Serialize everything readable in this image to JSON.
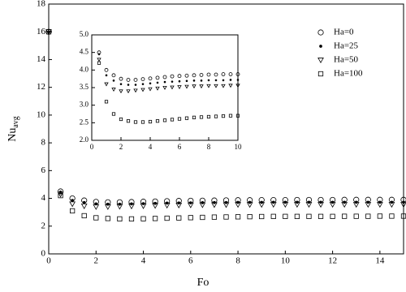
{
  "chart_data": {
    "type": "scatter",
    "xlabel": "Fo",
    "ylabel": "Nu",
    "ylabel_sub": "avg",
    "xlim": [
      0,
      15
    ],
    "ylim": [
      0,
      18
    ],
    "xticks": [
      0,
      2,
      4,
      6,
      8,
      10,
      12,
      14
    ],
    "yticks": [
      0,
      2,
      4,
      6,
      8,
      10,
      12,
      14,
      16,
      18
    ],
    "grid": false,
    "legend": "upper right",
    "x": [
      0,
      0.5,
      1,
      1.5,
      2,
      2.5,
      3,
      3.5,
      4,
      4.5,
      5,
      5.5,
      6,
      6.5,
      7,
      7.5,
      8,
      8.5,
      9,
      9.5,
      10,
      10.5,
      11,
      11.5,
      12,
      12.5,
      13,
      13.5,
      14,
      14.5,
      15
    ],
    "series": [
      {
        "name": "Ha=0",
        "color": "#000000",
        "marker": "circle",
        "values": [
          16,
          4.5,
          4.0,
          3.85,
          3.75,
          3.72,
          3.72,
          3.74,
          3.76,
          3.78,
          3.8,
          3.82,
          3.83,
          3.84,
          3.85,
          3.86,
          3.87,
          3.87,
          3.88,
          3.88,
          3.88,
          3.89,
          3.89,
          3.89,
          3.89,
          3.9,
          3.9,
          3.9,
          3.9,
          3.9,
          3.9
        ]
      },
      {
        "name": "Ha=25",
        "color": "#000000",
        "marker": "dot",
        "values": [
          16,
          4.45,
          3.85,
          3.7,
          3.6,
          3.58,
          3.58,
          3.6,
          3.62,
          3.64,
          3.66,
          3.67,
          3.68,
          3.69,
          3.7,
          3.7,
          3.71,
          3.71,
          3.71,
          3.72,
          3.72,
          3.72,
          3.72,
          3.72,
          3.72,
          3.72,
          3.72,
          3.72,
          3.72,
          3.72,
          3.72
        ]
      },
      {
        "name": "Ha=50",
        "color": "#000000",
        "marker": "triangle-down",
        "values": [
          16,
          4.3,
          3.6,
          3.45,
          3.4,
          3.4,
          3.42,
          3.44,
          3.46,
          3.48,
          3.5,
          3.51,
          3.52,
          3.53,
          3.54,
          3.54,
          3.55,
          3.55,
          3.55,
          3.56,
          3.56,
          3.56,
          3.56,
          3.56,
          3.56,
          3.56,
          3.56,
          3.56,
          3.56,
          3.56,
          3.56
        ]
      },
      {
        "name": "Ha=100",
        "color": "#000000",
        "marker": "square",
        "values": [
          16,
          4.2,
          3.1,
          2.75,
          2.6,
          2.55,
          2.52,
          2.52,
          2.53,
          2.55,
          2.57,
          2.59,
          2.61,
          2.63,
          2.65,
          2.66,
          2.67,
          2.68,
          2.69,
          2.7,
          2.7,
          2.7,
          2.7,
          2.7,
          2.7,
          2.71,
          2.71,
          2.71,
          2.72,
          2.72,
          2.72
        ]
      }
    ],
    "inset": {
      "xlim": [
        0,
        10
      ],
      "ylim": [
        2,
        5
      ],
      "xticks": [
        0,
        2,
        4,
        6,
        8,
        10
      ],
      "yticks": [
        {
          "value": 2,
          "label": "2.0"
        },
        {
          "value": 2.5,
          "label": "2.5"
        },
        {
          "value": 3,
          "label": "3.0"
        },
        {
          "value": 3.5,
          "label": "3.5"
        },
        {
          "value": 4,
          "label": "4.0"
        },
        {
          "value": 4.5,
          "label": "4.5"
        },
        {
          "value": 5,
          "label": "5.0"
        }
      ]
    }
  }
}
